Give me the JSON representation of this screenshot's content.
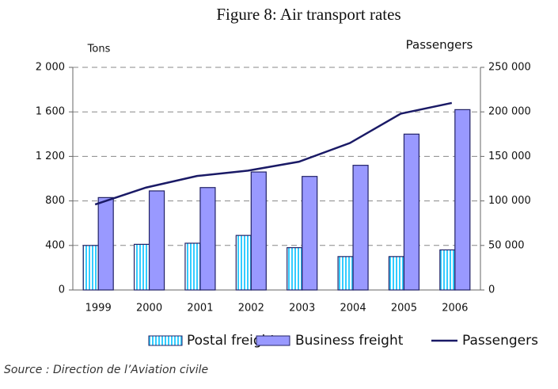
{
  "chart_data": {
    "type": "bar_line",
    "title": "Figure 8: Air transport rates",
    "y_label": "Tons",
    "y2_label": "Passengers",
    "categories": [
      "1999",
      "2000",
      "2001",
      "2002",
      "2003",
      "2004",
      "2005",
      "2006"
    ],
    "series": [
      {
        "name": "Postal freight",
        "color": "#33ccff",
        "values": [
          400,
          410,
          420,
          490,
          380,
          300,
          300,
          360
        ]
      },
      {
        "name": "Business freight",
        "color": "#9999ff",
        "values": [
          830,
          890,
          920,
          1060,
          1020,
          1120,
          1400,
          1620
        ]
      },
      {
        "name": "Passengers",
        "color": "#1a1a66",
        "axis": "y2",
        "values": [
          96000,
          115000,
          128000,
          134000,
          144000,
          165000,
          198000,
          210000
        ]
      }
    ],
    "ylim": [
      0,
      2000
    ],
    "yticks": [
      0,
      400,
      800,
      {
        "value": 1200,
        "label": "1 200"
      },
      {
        "value": 1600,
        "label": "1 600"
      },
      {
        "value": 2000,
        "label": "2 000"
      }
    ],
    "y2lim": [
      0,
      250000
    ],
    "y2ticks": [
      0,
      {
        "value": 50000,
        "label": "50 000"
      },
      {
        "value": 100000,
        "label": "100 000"
      },
      {
        "value": 150000,
        "label": "150 000"
      },
      {
        "value": 200000,
        "label": "200 000"
      },
      {
        "value": 250000,
        "label": "250 000"
      }
    ],
    "grid": true,
    "legend": "bottom",
    "source": "Source : Direction de l’Aviation civile"
  }
}
